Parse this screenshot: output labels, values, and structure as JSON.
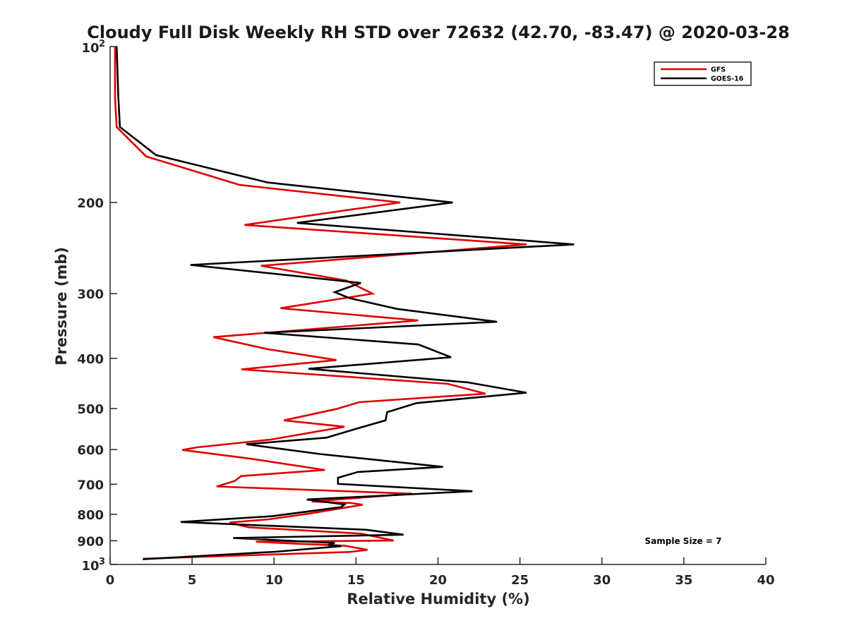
{
  "chart_data": {
    "type": "line",
    "title": "Cloudy Full Disk Weekly RH STD over 72632 (42.70, -83.47) @ 2020-03-28",
    "xlabel": "Relative Humidity (%)",
    "ylabel": "Pressure (mb)",
    "xlim": [
      0,
      40
    ],
    "ylim": [
      100,
      1000
    ],
    "yscale": "log",
    "y_reversed": true,
    "x_ticks": [
      "0",
      "5",
      "10",
      "15",
      "20",
      "25",
      "30",
      "35",
      "40"
    ],
    "y_ticks": [
      {
        "value": 100,
        "label": "10",
        "exp": "2"
      },
      {
        "value": 200,
        "label": "200"
      },
      {
        "value": 300,
        "label": "300"
      },
      {
        "value": 400,
        "label": "400"
      },
      {
        "value": 500,
        "label": "500"
      },
      {
        "value": 600,
        "label": "600"
      },
      {
        "value": 700,
        "label": "700"
      },
      {
        "value": 800,
        "label": "800"
      },
      {
        "value": 900,
        "label": "900"
      },
      {
        "value": 1000,
        "label": "10",
        "exp": "3"
      }
    ],
    "grid": false,
    "legend_position": "top-right",
    "annotation": "Sample Size = 7",
    "series": [
      {
        "name": "GFS",
        "color": "#e00000",
        "points": [
          [
            0.3,
            100
          ],
          [
            0.3,
            126
          ],
          [
            0.4,
            143
          ],
          [
            2.2,
            163
          ],
          [
            7.9,
            185
          ],
          [
            17.7,
            200
          ],
          [
            8.2,
            221
          ],
          [
            25.4,
            241
          ],
          [
            9.2,
            265
          ],
          [
            14.4,
            283
          ],
          [
            16.0,
            300
          ],
          [
            10.4,
            320
          ],
          [
            18.8,
            338
          ],
          [
            6.3,
            364
          ],
          [
            9.6,
            384
          ],
          [
            13.8,
            403
          ],
          [
            8.0,
            420
          ],
          [
            20.6,
            448
          ],
          [
            22.9,
            468
          ],
          [
            15.2,
            486
          ],
          [
            13.8,
            501
          ],
          [
            10.6,
            527
          ],
          [
            14.3,
            542
          ],
          [
            9.8,
            574
          ],
          [
            5.3,
            594
          ],
          [
            4.4,
            601
          ],
          [
            8.6,
            625
          ],
          [
            13.1,
            657
          ],
          [
            8.0,
            675
          ],
          [
            7.6,
            690
          ],
          [
            6.5,
            707
          ],
          [
            18.4,
            730
          ],
          [
            12.3,
            756
          ],
          [
            14.7,
            761
          ],
          [
            15.4,
            767
          ],
          [
            12.2,
            797
          ],
          [
            9.7,
            818
          ],
          [
            7.3,
            830
          ],
          [
            7.9,
            840
          ],
          [
            8.5,
            848
          ],
          [
            15.3,
            872
          ],
          [
            17.3,
            899
          ],
          [
            8.9,
            904
          ],
          [
            11.1,
            911
          ],
          [
            14.3,
            920
          ],
          [
            15.7,
            937
          ],
          [
            14.6,
            946
          ],
          [
            2.0,
            975
          ]
        ]
      },
      {
        "name": "GOES-16",
        "color": "#000000",
        "points": [
          [
            0.4,
            100
          ],
          [
            0.5,
            125
          ],
          [
            0.6,
            143
          ],
          [
            2.8,
            162
          ],
          [
            9.6,
            183
          ],
          [
            20.9,
            200
          ],
          [
            11.4,
            219
          ],
          [
            28.3,
            241
          ],
          [
            4.9,
            264
          ],
          [
            15.3,
            286
          ],
          [
            13.7,
            298
          ],
          [
            14.6,
            306
          ],
          [
            17.5,
            321
          ],
          [
            23.6,
            340
          ],
          [
            9.4,
            357
          ],
          [
            18.8,
            376
          ],
          [
            20.8,
            398
          ],
          [
            12.1,
            419
          ],
          [
            21.8,
            445
          ],
          [
            25.4,
            466
          ],
          [
            18.7,
            488
          ],
          [
            16.9,
            508
          ],
          [
            16.8,
            527
          ],
          [
            15.1,
            546
          ],
          [
            13.2,
            569
          ],
          [
            8.3,
            586
          ],
          [
            12.8,
            612
          ],
          [
            20.3,
            648
          ],
          [
            15.1,
            663
          ],
          [
            13.9,
            680
          ],
          [
            13.9,
            699
          ],
          [
            22.1,
            722
          ],
          [
            12.0,
            749
          ],
          [
            14.3,
            766
          ],
          [
            14.1,
            775
          ],
          [
            9.9,
            807
          ],
          [
            4.3,
            828
          ],
          [
            10.2,
            843
          ],
          [
            15.6,
            857
          ],
          [
            17.9,
            876
          ],
          [
            7.5,
            889
          ],
          [
            13.7,
            909
          ],
          [
            13.3,
            917
          ],
          [
            14.1,
            922
          ],
          [
            10.1,
            945
          ],
          [
            2.0,
            977
          ]
        ]
      }
    ]
  }
}
